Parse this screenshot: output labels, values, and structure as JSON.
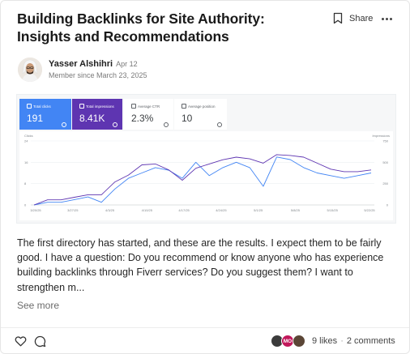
{
  "post": {
    "title_lines": [
      "Building Backlinks for Site Authority:",
      "Insights and Recommendations"
    ],
    "share_label": "Share",
    "author_name": "Yasser Alshihri",
    "post_date": "Apr 12",
    "member_since": "Member since March 23, 2025",
    "body": "The first directory has started, and these are the results. I expect them to be fairly good. I have a question: Do you recommend or know anyone who has experience building backlinks through Fiverr services? Do you suggest them? I want to strengthen m...",
    "see_more_label": "See more"
  },
  "footer": {
    "reactor_initials": "MO",
    "likes_label": "9 likes",
    "separator": "·",
    "comments_label": "2 comments"
  },
  "gsc": {
    "tiles": [
      {
        "label": "Total clicks",
        "value": "191",
        "checked": true
      },
      {
        "label": "Total impressions",
        "value": "8.41K",
        "checked": true
      },
      {
        "label": "Average CTR",
        "value": "2.3%",
        "checked": false
      },
      {
        "label": "Average position",
        "value": "10",
        "checked": false
      }
    ]
  },
  "chart_data": {
    "type": "line",
    "left_axis_label": "Clicks",
    "right_axis_label": "Impressions",
    "left_ticks": [
      "24",
      "16",
      "8",
      "0"
    ],
    "right_ticks": [
      "750",
      "500",
      "250",
      "0"
    ],
    "ylim_left": [
      0,
      24
    ],
    "ylim_right": [
      0,
      750
    ],
    "x": [
      "3/20/25",
      "3/22/25",
      "3/24/25",
      "3/26/25",
      "3/28/25",
      "3/30/25",
      "4/1/25",
      "4/3/25",
      "4/5/25",
      "4/7/25",
      "4/9/25",
      "4/11/25",
      "4/13/25",
      "4/15/25",
      "4/17/25",
      "4/19/25",
      "4/21/25",
      "4/23/25",
      "4/25/25",
      "4/27/25",
      "4/29/25",
      "5/1/25",
      "5/3/25",
      "5/5/25",
      "5/7/25",
      "5/9/25"
    ],
    "x_tick_labels": [
      "3/20/25",
      "3/27/25",
      "4/3/25",
      "4/10/25",
      "4/17/25",
      "4/24/25",
      "5/1/25",
      "5/8/25",
      "5/15/25",
      "5/22/25"
    ],
    "series": [
      {
        "name": "Clicks",
        "axis": "left",
        "color": "#4285f4",
        "values": [
          0,
          1,
          1,
          2,
          3,
          1,
          6,
          10,
          12,
          14,
          13,
          10,
          16,
          11,
          14,
          16,
          14,
          7,
          18,
          17,
          14,
          12,
          11,
          10,
          11,
          12
        ]
      },
      {
        "name": "Impressions",
        "axis": "right",
        "color": "#5e35b1",
        "values": [
          0,
          60,
          60,
          90,
          120,
          120,
          270,
          350,
          470,
          480,
          410,
          290,
          430,
          480,
          530,
          560,
          540,
          490,
          590,
          580,
          560,
          490,
          420,
          390,
          390,
          410
        ]
      }
    ]
  }
}
